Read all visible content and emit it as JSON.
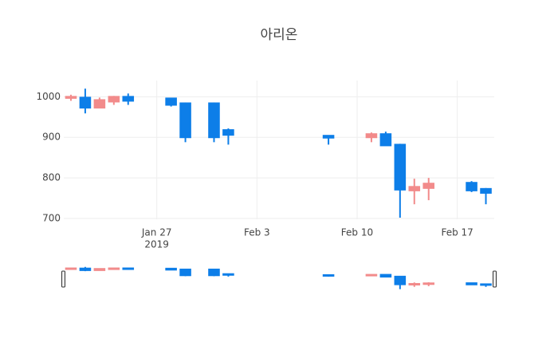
{
  "chart_data": {
    "type": "candlestick",
    "title": "아리온",
    "x": [
      "2019-01-21",
      "2019-01-22",
      "2019-01-23",
      "2019-01-24",
      "2019-01-25",
      "2019-01-28",
      "2019-01-29",
      "2019-01-31",
      "2019-02-01",
      "2019-02-08",
      "2019-02-11",
      "2019-02-12",
      "2019-02-13",
      "2019-02-14",
      "2019-02-15",
      "2019-02-18",
      "2019-02-19"
    ],
    "open": [
      997,
      998,
      973,
      988,
      1000,
      996,
      984,
      984,
      918,
      904,
      900,
      908,
      882,
      769,
      775,
      788,
      773
    ],
    "high": [
      1005,
      1020,
      998,
      1002,
      1008,
      997,
      986,
      986,
      922,
      905,
      912,
      914,
      884,
      798,
      800,
      792,
      775
    ],
    "low": [
      990,
      959,
      973,
      980,
      980,
      976,
      888,
      888,
      882,
      882,
      888,
      880,
      702,
      735,
      745,
      765,
      735
    ],
    "close": [
      1000,
      973,
      992,
      1000,
      990,
      980,
      900,
      900,
      906,
      899,
      908,
      880,
      771,
      778,
      786,
      769,
      763
    ],
    "increasing_color": "#f28b8b",
    "decreasing_color": "#0d7ee8",
    "xlim": [
      "2019-01-20T12:00:00Z",
      "2019-02-19T14:00:00Z"
    ],
    "xticks": [
      {
        "value": "2019-01-27",
        "label": "Jan 27"
      },
      {
        "value": "2019-02-03",
        "label": "Feb 3"
      },
      {
        "value": "2019-02-10",
        "label": "Feb 10"
      },
      {
        "value": "2019-02-17",
        "label": "Feb 17"
      }
    ],
    "x_year_label": "2019",
    "ylim": [
      698,
      1040
    ],
    "yticks": [
      700,
      800,
      900,
      1000
    ],
    "grid": true,
    "rangeslider": true
  }
}
